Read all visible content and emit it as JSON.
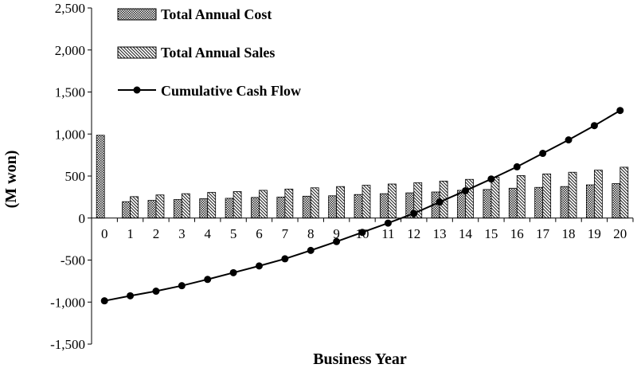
{
  "chart_data": {
    "type": "bar",
    "categories": [
      "0",
      "1",
      "2",
      "3",
      "4",
      "5",
      "6",
      "7",
      "8",
      "9",
      "10",
      "11",
      "12",
      "13",
      "14",
      "15",
      "16",
      "17",
      "18",
      "19",
      "20"
    ],
    "series": [
      {
        "name": "Total Annual Cost",
        "type": "bar",
        "values": [
          985,
          195,
          210,
          220,
          230,
          235,
          245,
          250,
          260,
          265,
          280,
          290,
          300,
          310,
          330,
          340,
          355,
          365,
          375,
          395,
          410
        ]
      },
      {
        "name": "Total Annual Sales",
        "type": "bar",
        "values": [
          0,
          255,
          275,
          290,
          305,
          315,
          330,
          345,
          360,
          375,
          390,
          405,
          420,
          440,
          460,
          485,
          505,
          525,
          545,
          570,
          605
        ]
      },
      {
        "name": "Cumulative Cash Flow",
        "type": "line",
        "values": [
          -985,
          -925,
          -870,
          -805,
          -730,
          -650,
          -570,
          -485,
          -385,
          -280,
          -170,
          -60,
          55,
          190,
          325,
          465,
          610,
          770,
          930,
          1100,
          1280
        ]
      }
    ],
    "xlabel": "Business Year",
    "ylabel": "(M won)",
    "ylim": [
      -1500,
      2500
    ],
    "yticks": [
      -1500,
      -1000,
      -500,
      0,
      500,
      1000,
      1500,
      2000,
      2500
    ],
    "ytick_labels": [
      "-1,500",
      "-1,000",
      "-500",
      "0",
      "500",
      "1,000",
      "1,500",
      "2,000",
      "2,500"
    ],
    "grid": false,
    "legend_position": "top-left"
  },
  "colors": {
    "axis": "#000000",
    "line": "#000000",
    "bar_outline": "#000000"
  }
}
